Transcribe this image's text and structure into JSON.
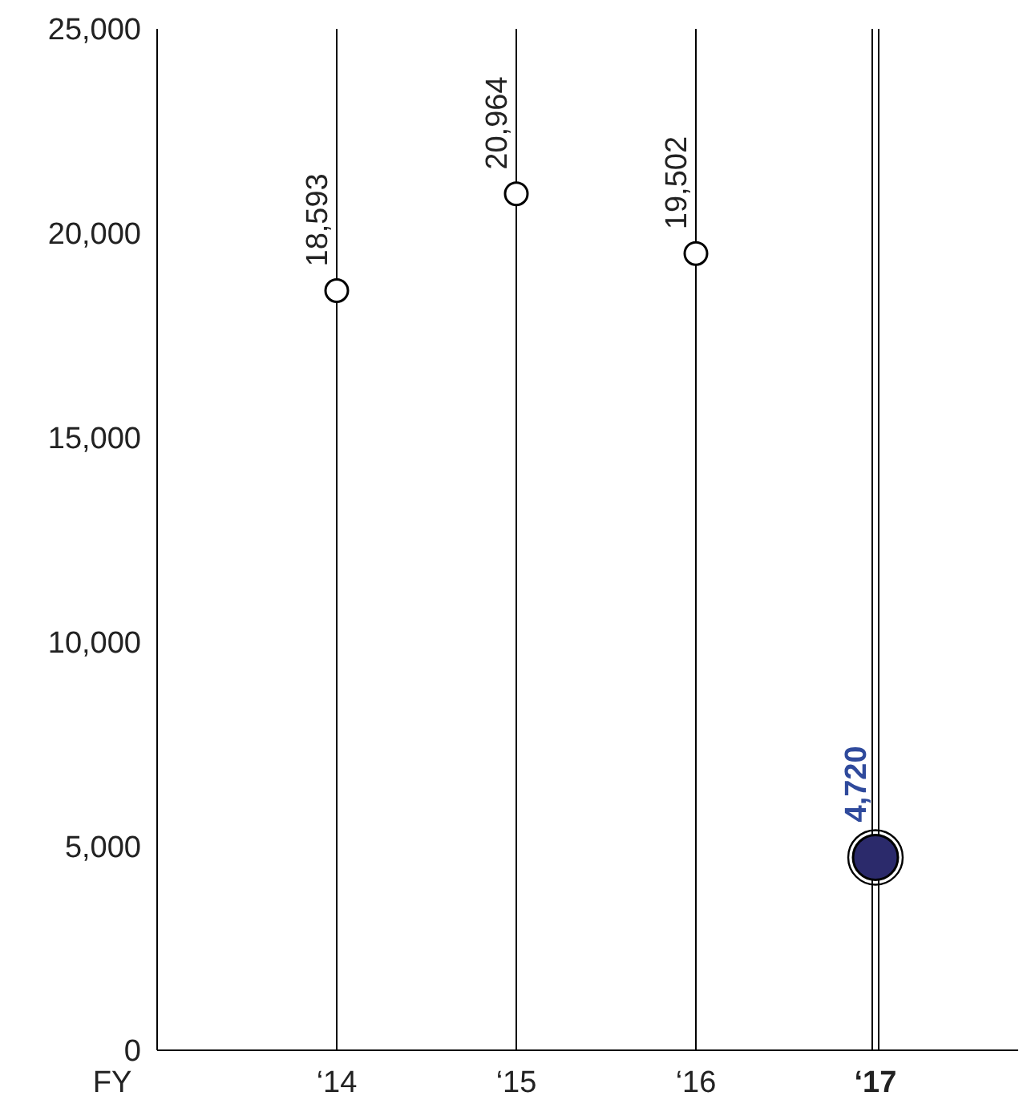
{
  "chart_data": {
    "type": "lollipop",
    "xlabel": "FY",
    "categories": [
      "‘14",
      "‘15",
      "‘16",
      "‘17"
    ],
    "values": [
      18593,
      20964,
      19502,
      4720
    ],
    "sizes": [
      0.25,
      0.25,
      0.25,
      1
    ],
    "colors": [
      "#ffffff",
      "#ffffff",
      "#ffffff",
      "#2b2a6b"
    ],
    "ylim": [
      0,
      25000
    ],
    "yticks": [
      {
        "value": 0,
        "label": "0"
      },
      {
        "value": 5000,
        "label": "5,000"
      },
      {
        "value": 10000,
        "label": "10,000"
      },
      {
        "value": 15000,
        "label": "15,000"
      },
      {
        "value": 20000,
        "label": "20,000"
      },
      {
        "value": 25000,
        "label": "25,000"
      }
    ],
    "value_labels": [
      "18,593",
      "20,964",
      "19,502",
      "4,720"
    ],
    "grid": "x",
    "marker": "circle"
  }
}
